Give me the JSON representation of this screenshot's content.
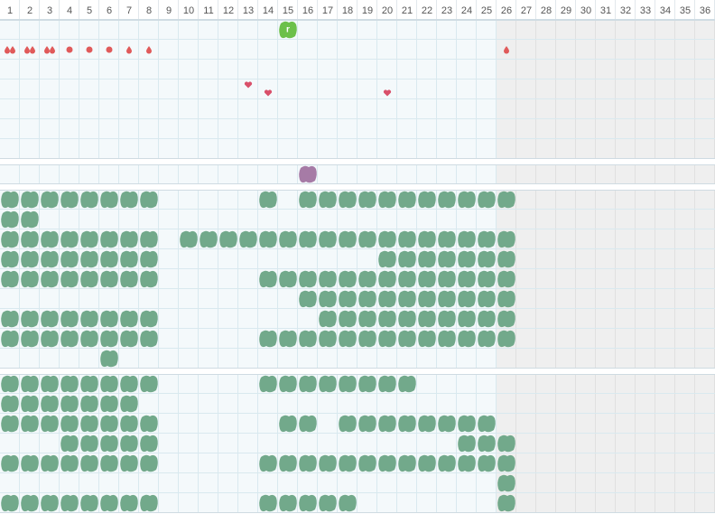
{
  "header": {
    "columns": [
      1,
      2,
      3,
      4,
      5,
      6,
      7,
      8,
      9,
      10,
      11,
      12,
      13,
      14,
      15,
      16,
      17,
      18,
      19,
      20,
      21,
      22,
      23,
      24,
      25,
      26,
      27,
      28,
      29,
      30,
      31,
      32,
      33,
      34,
      35,
      36
    ],
    "shaded_from": 26
  },
  "top": {
    "badge": {
      "column": 15,
      "label": "r"
    },
    "markers": [
      {
        "column": 1,
        "kind": "drop",
        "count": 2
      },
      {
        "column": 2,
        "kind": "drop",
        "count": 2
      },
      {
        "column": 3,
        "kind": "drop",
        "count": 2
      },
      {
        "column": 4,
        "kind": "dot",
        "count": 1
      },
      {
        "column": 5,
        "kind": "dot",
        "count": 1
      },
      {
        "column": 6,
        "kind": "dot",
        "count": 1
      },
      {
        "column": 7,
        "kind": "drop",
        "count": 1
      },
      {
        "column": 8,
        "kind": "drop",
        "count": 1
      },
      {
        "column": 26,
        "kind": "drop",
        "count": 1
      }
    ],
    "hearts": [
      13,
      14,
      20
    ]
  },
  "lane": {
    "blob_column": 16
  },
  "group_a": {
    "rows": [
      [
        1,
        2,
        3,
        4,
        5,
        6,
        7,
        8,
        14,
        16,
        17,
        18,
        19,
        20,
        21,
        22,
        23,
        24,
        25,
        26
      ],
      [
        1,
        2
      ],
      [
        1,
        2,
        3,
        4,
        5,
        6,
        7,
        8,
        10,
        11,
        12,
        13,
        14,
        15,
        16,
        17,
        18,
        19,
        20,
        21,
        22,
        23,
        24,
        25,
        26
      ],
      [
        1,
        2,
        3,
        4,
        5,
        6,
        7,
        8,
        20,
        21,
        22,
        23,
        24,
        25,
        26
      ],
      [
        1,
        2,
        3,
        4,
        5,
        6,
        7,
        8,
        14,
        15,
        16,
        17,
        18,
        19,
        20,
        21,
        22,
        23,
        24,
        25,
        26
      ],
      [
        16,
        17,
        18,
        19,
        20,
        21,
        22,
        23,
        24,
        25,
        26
      ],
      [
        1,
        2,
        3,
        4,
        5,
        6,
        7,
        8,
        17,
        18,
        19,
        20,
        21,
        22,
        23,
        24,
        25,
        26
      ],
      [
        1,
        2,
        3,
        4,
        5,
        6,
        7,
        8,
        14,
        15,
        16,
        17,
        18,
        19,
        20,
        21,
        22,
        23,
        24,
        25,
        26
      ],
      [
        6
      ]
    ]
  },
  "group_b": {
    "rows": [
      [
        1,
        2,
        3,
        4,
        5,
        6,
        7,
        8,
        14,
        15,
        16,
        17,
        18,
        19,
        20,
        21
      ],
      [
        1,
        2,
        3,
        4,
        5,
        6,
        7
      ],
      [
        1,
        2,
        3,
        4,
        5,
        6,
        7,
        8,
        15,
        16,
        18,
        19,
        20,
        21,
        22,
        23,
        24,
        25
      ],
      [
        4,
        5,
        6,
        7,
        8,
        24,
        25,
        26
      ],
      [
        1,
        2,
        3,
        4,
        5,
        6,
        7,
        8,
        14,
        15,
        16,
        17,
        18,
        19,
        20,
        21,
        22,
        23,
        24,
        25,
        26
      ],
      [
        26
      ],
      [
        1,
        2,
        3,
        4,
        5,
        6,
        7,
        8,
        14,
        15,
        16,
        17,
        18,
        26
      ]
    ]
  }
}
